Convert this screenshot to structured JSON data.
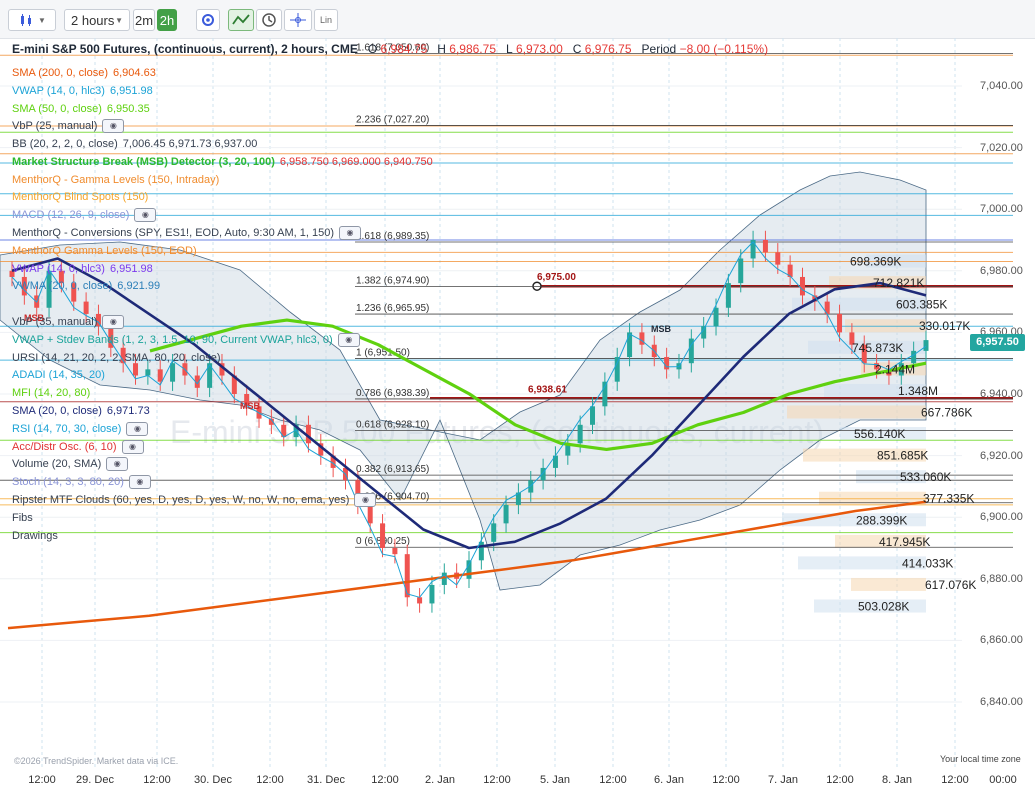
{
  "toolbar": {
    "timeframe_label": "2 hours",
    "btn_2m": "2m",
    "btn_2h": "2h",
    "lin_label": "Lin"
  },
  "header": {
    "title": "E-mini S&P 500 Futures, (continuous, current), 2 hours, CME",
    "o_label": "O",
    "o_value": "6,984.75",
    "h_label": "H",
    "h_value": "6,986.75",
    "l_label": "L",
    "l_value": "6,973.00",
    "c_label": "C",
    "c_value": "6,976.75",
    "period_label": "Period",
    "period_value": "−8.00 (−0.115%)"
  },
  "legend": [
    {
      "text": "SMA (200, 0, close)",
      "value": "6,904.63",
      "color": "#e8590c",
      "eye": false
    },
    {
      "text": "VWAP (14, 0, hlc3)",
      "value": "6,951.98",
      "color": "#1ca3d6",
      "eye": false
    },
    {
      "text": "SMA (50, 0, close)",
      "value": "6,950.35",
      "color": "#5fd10f",
      "eye": false
    },
    {
      "text": "VbP (25, manual)",
      "value": "",
      "color": "#374151",
      "eye": true
    },
    {
      "text": "BB (20, 2, 2, 0, close)",
      "value": "7,006.45 6,971.73 6,937.00",
      "color": "#374151",
      "eye": false
    },
    {
      "text": "Market Structure Break (MSB) Detector (3, 20, 100)",
      "value": "6,958.750  6,969.000  6,940.750",
      "color": "#2fb82f",
      "eye": false,
      "bold": true
    },
    {
      "text": "MenthorQ - Gamma Levels (150, Intraday)",
      "value": "",
      "color": "#f08c2e",
      "eye": false
    },
    {
      "text": "MenthorQ Blind Spots (150)",
      "value": "",
      "color": "#f5a52a",
      "eye": false
    },
    {
      "text": "MACD (12, 26, 9, close)",
      "value": "",
      "color": "#8a94d6",
      "eye": true
    },
    {
      "text": "MenthorQ - Conversions (SPY, ES1!, EOD, Auto, 9:30 AM, 1, 150)",
      "value": "",
      "color": "#374151",
      "eye": true
    },
    {
      "text": "MenthorQ Gamma Levels (150, EOD)",
      "value": "",
      "color": "#f08c2e",
      "eye": false
    },
    {
      "text": "VWAP (14, 0, hlc3)",
      "value": "6,951.98",
      "color": "#7c3aed",
      "eye": false
    },
    {
      "text": "VWMA (20, 0, close)",
      "value": "6,921.99",
      "color": "#2c7fb8",
      "eye": false
    },
    {
      "text": "",
      "value": "",
      "color": "#374151",
      "eye": false
    },
    {
      "text": "VbP (35, manual)",
      "value": "",
      "color": "#374151",
      "eye": true
    },
    {
      "text": "VWAP + Stdev Bands (1, 2, 3, 1.5, 10, 90, Current VWAP, hlc3, 0)",
      "value": "",
      "color": "#1aa39a",
      "eye": true
    },
    {
      "text": "URSI (14, 21, 20, 2, 2, SMA, 80, 20, close)",
      "value": "",
      "color": "#374151",
      "eye": false
    },
    {
      "text": "ADADI (14, 35, 20)",
      "value": "",
      "color": "#1ca3d6",
      "eye": false
    },
    {
      "text": "MFI (14, 20, 80)",
      "value": "",
      "color": "#5fd10f",
      "eye": false
    },
    {
      "text": "SMA (20, 0, close)",
      "value": "6,971.73",
      "color": "#1e2a78",
      "eye": false
    },
    {
      "text": "RSI (14, 70, 30, close)",
      "value": "",
      "color": "#1ca3d6",
      "eye": true
    },
    {
      "text": "Acc/Distr Osc. (6, 10)",
      "value": "",
      "color": "#e03131",
      "eye": true
    },
    {
      "text": "Volume (20, SMA)",
      "value": "",
      "color": "#374151",
      "eye": true
    },
    {
      "text": "Stoch (14, 3, 3, 80, 20)",
      "value": "",
      "color": "#8a94d6",
      "eye": true
    },
    {
      "text": "Ripster MTF Clouds (60, yes, D, yes, D, yes, W, no, W, no, ema, yes)",
      "value": "",
      "color": "#374151",
      "eye": true
    },
    {
      "text": "Fibs",
      "value": "",
      "color": "#374151",
      "eye": false
    },
    {
      "text": "Drawings",
      "value": "",
      "color": "#374151",
      "eye": false
    }
  ],
  "fib_labels": [
    {
      "text": "1.618 (7,050.60)",
      "price": 7050.6
    },
    {
      "text": "2.236 (7,027.20)",
      "price": 7027.2
    },
    {
      "text": "1.618 (6,989.35)",
      "price": 6989.35
    },
    {
      "text": "1.382 (6,974.90)",
      "price": 6974.9
    },
    {
      "text": "1.236 (6,965.95)",
      "price": 6965.95
    },
    {
      "text": "1 (6,951.50)",
      "price": 6951.5
    },
    {
      "text": "0.786 (6,938.39)",
      "price": 6938.39
    },
    {
      "text": "0.618 (6,928.10)",
      "price": 6928.1
    },
    {
      "text": "0.382 (6,913.65)",
      "price": 6913.65
    },
    {
      "text": "0.236 (6,904.70)",
      "price": 6904.7
    },
    {
      "text": "0 (6,890.25)",
      "price": 6890.25
    }
  ],
  "markers": {
    "level_1": "6,975.00",
    "level_2": "6,938.61",
    "msb": "MSB"
  },
  "volume_labels": [
    {
      "text": "698.369K",
      "price": 6983
    },
    {
      "text": "712.821K",
      "price": 6976
    },
    {
      "text": "603.385K",
      "price": 6969
    },
    {
      "text": "330.017K",
      "price": 6962
    },
    {
      "text": "745.873K",
      "price": 6955
    },
    {
      "text": "2.144M",
      "price": 6948
    },
    {
      "text": "1.348M",
      "price": 6941
    },
    {
      "text": "667.786K",
      "price": 6934
    },
    {
      "text": "556.140K",
      "price": 6927
    },
    {
      "text": "851.685K",
      "price": 6920
    },
    {
      "text": "533.060K",
      "price": 6913
    },
    {
      "text": "377.335K",
      "price": 6906
    },
    {
      "text": "288.399K",
      "price": 6899
    },
    {
      "text": "417.945K",
      "price": 6892
    },
    {
      "text": "414.033K",
      "price": 6885
    },
    {
      "text": "617.076K",
      "price": 6878
    },
    {
      "text": "503.028K",
      "price": 6871
    }
  ],
  "price_axis": [
    "7,040.00",
    "7,020.00",
    "7,000.00",
    "6,980.00",
    "6,960.00",
    "6,940.00",
    "6,920.00",
    "6,900.00",
    "6,880.00",
    "6,860.00",
    "6,840.00"
  ],
  "last_price": "6,957.50",
  "time_axis": [
    "12:00",
    "29. Dec",
    "12:00",
    "30. Dec",
    "12:00",
    "31. Dec",
    "12:00",
    "2. Jan",
    "12:00",
    "5. Jan",
    "12:00",
    "6. Jan",
    "12:00",
    "7. Jan",
    "12:00",
    "8. Jan",
    "12:00",
    "00:00"
  ],
  "watermark": "E-mini S&P 500 Futures, (continuous, current)",
  "copyright": "©2026 TrendSpider. Market data via ICE.",
  "timezone": "Your local time zone",
  "colors": {
    "up": "#26a69a",
    "down": "#ef5350",
    "sma200": "#e8590c",
    "sma50": "#5fd10f",
    "sma20": "#1e2a78",
    "vwap": "#1ca3d6",
    "bb_fill": "#c7d5df",
    "level": "#a31515"
  },
  "chart_data": {
    "type": "candlestick",
    "y_unit": "price",
    "ylim": [
      6826,
      7058
    ],
    "x_ticks": [
      "12:00",
      "29. Dec",
      "12:00",
      "30. Dec",
      "12:00",
      "31. Dec",
      "12:00",
      "2. Jan",
      "12:00",
      "5. Jan",
      "12:00",
      "6. Jan",
      "12:00",
      "7. Jan",
      "12:00",
      "8. Jan",
      "12:00",
      "00:00"
    ],
    "close": [
      6978,
      6972,
      6968,
      6980,
      6976,
      6970,
      6966,
      6962,
      6955,
      6950,
      6946,
      6948,
      6944,
      6950,
      6946,
      6942,
      6950,
      6946,
      6940,
      6936,
      6932,
      6930,
      6926,
      6930,
      6924,
      6920,
      6916,
      6912,
      6904,
      6898,
      6890,
      6888,
      6874,
      6872,
      6878,
      6882,
      6880,
      6886,
      6892,
      6898,
      6904,
      6908,
      6912,
      6916,
      6920,
      6924,
      6930,
      6936,
      6944,
      6952,
      6960,
      6956,
      6952,
      6948,
      6950,
      6958,
      6962,
      6968,
      6976,
      6984,
      6990,
      6986,
      6982,
      6978,
      6972,
      6970,
      6966,
      6960,
      6956,
      6950,
      6948,
      6946,
      6950,
      6954,
      6957.5
    ],
    "sma200": [
      6864,
      6866,
      6868,
      6871,
      6874,
      6877,
      6880,
      6883,
      6886,
      6890,
      6894,
      6898,
      6902,
      6905
    ],
    "sma50": [
      6954,
      6958,
      6962,
      6964,
      6962,
      6956,
      6948,
      6940,
      6930,
      6924,
      6922,
      6924,
      6930,
      6934,
      6940,
      6944,
      6947,
      6950
    ],
    "sma20": [
      6980,
      6984,
      6976,
      6966,
      6956,
      6944,
      6932,
      6920,
      6908,
      6896,
      6890,
      6892,
      6898,
      6906,
      6920,
      6936,
      6952,
      6966,
      6974,
      6976,
      6972
    ]
  }
}
